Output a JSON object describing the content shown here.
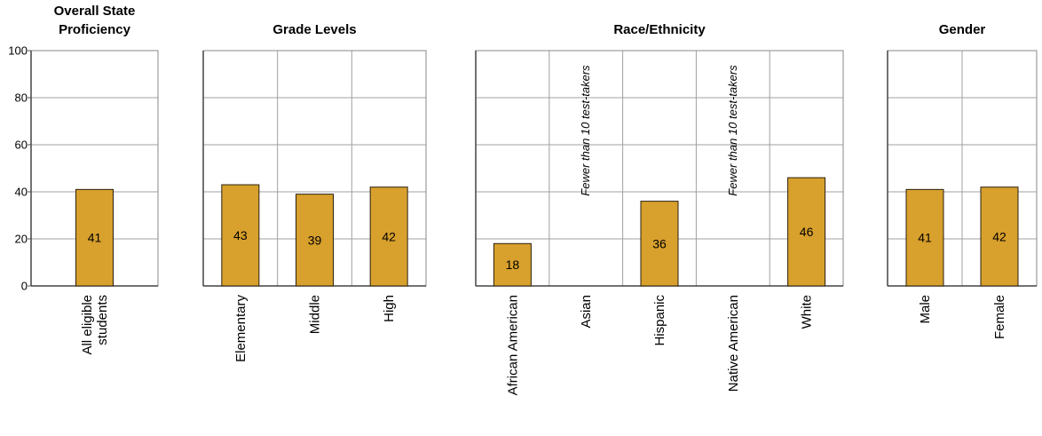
{
  "chart_data": {
    "type": "bar",
    "ylim": [
      0,
      100
    ],
    "yticks": [
      0,
      20,
      40,
      60,
      80,
      100
    ],
    "grid": true,
    "bar_color": "#d8a02c",
    "bar_border_color": "#2a2010",
    "grid_color": "#a0a0a0",
    "panels": [
      {
        "title": [
          "Overall State",
          "Proficiency"
        ],
        "categories": [
          {
            "label": [
              "All eligible",
              "students"
            ],
            "value": 41,
            "value_label": "41"
          }
        ]
      },
      {
        "title": [
          "Grade Levels"
        ],
        "categories": [
          {
            "label": [
              "Elementary"
            ],
            "value": 43,
            "value_label": "43"
          },
          {
            "label": [
              "Middle"
            ],
            "value": 39,
            "value_label": "39"
          },
          {
            "label": [
              "High"
            ],
            "value": 42,
            "value_label": "42"
          }
        ]
      },
      {
        "title": [
          "Race/Ethnicity"
        ],
        "categories": [
          {
            "label": [
              "African American"
            ],
            "value": 18,
            "value_label": "18"
          },
          {
            "label": [
              "Asian"
            ],
            "value": null,
            "note": "Fewer than 10 test-takers"
          },
          {
            "label": [
              "Hispanic"
            ],
            "value": 36,
            "value_label": "36"
          },
          {
            "label": [
              "Native American"
            ],
            "value": null,
            "note": "Fewer than 10 test-takers"
          },
          {
            "label": [
              "White"
            ],
            "value": 46,
            "value_label": "46"
          }
        ]
      },
      {
        "title": [
          "Gender"
        ],
        "categories": [
          {
            "label": [
              "Male"
            ],
            "value": 41,
            "value_label": "41"
          },
          {
            "label": [
              "Female"
            ],
            "value": 42,
            "value_label": "42"
          }
        ]
      }
    ]
  }
}
